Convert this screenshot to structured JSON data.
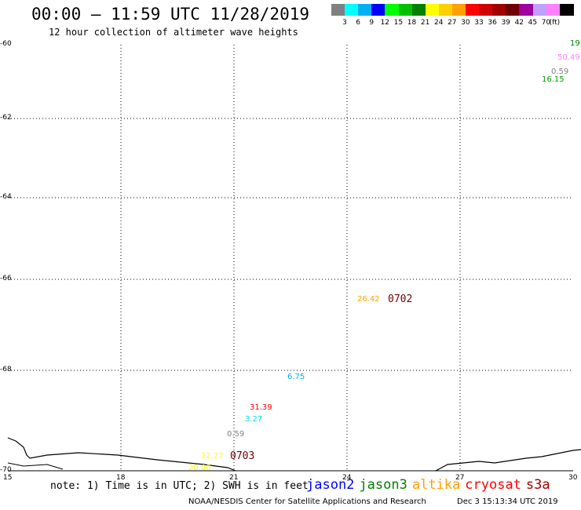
{
  "header": {
    "title": "00:00 – 11:59 UTC 11/28/2019",
    "subtitle": "12 hour collection of altimeter wave heights"
  },
  "colorbar": {
    "colors": [
      "#808080",
      "#00ffff",
      "#00b0f0",
      "#0000ff",
      "#00ff00",
      "#00c000",
      "#008000",
      "#ffff00",
      "#ffd000",
      "#ffa000",
      "#ff0000",
      "#d00000",
      "#a00000",
      "#700000",
      "#a000a0",
      "#c0a0ff",
      "#ff80ff",
      "#000000"
    ],
    "labels": [
      "3",
      "6",
      "9",
      "12",
      "15",
      "18",
      "21",
      "24",
      "27",
      "30",
      "33",
      "36",
      "39",
      "42",
      "45",
      "70"
    ],
    "unit": "(ft)"
  },
  "axes": {
    "lat_labels": [
      "-60",
      "-62",
      "-64",
      "-66",
      "-68",
      "-70"
    ],
    "lon_labels": [
      "15",
      "18",
      "21",
      "24",
      "27",
      "30"
    ]
  },
  "observations": [
    {
      "text": "19.",
      "color": "#008000"
    },
    {
      "text": "50.49",
      "color": "#ff80ff"
    },
    {
      "text": "0.59",
      "color": "#808080"
    },
    {
      "text": "16.15",
      "color": "#00a000"
    },
    {
      "text": "26.42",
      "color": "#ffa000"
    },
    {
      "text": "6.75",
      "color": "#00b0f0"
    },
    {
      "text": "31.39",
      "color": "#ff0000"
    },
    {
      "text": "3.27",
      "color": "#00e0e0"
    },
    {
      "text": "0.59",
      "color": "#808080"
    },
    {
      "text": "22.27",
      "color": "#ffff00"
    },
    {
      "text": "20.00",
      "color": "#ffff00"
    }
  ],
  "passes": [
    {
      "text": "0702",
      "color": "#700000"
    },
    {
      "text": "0703",
      "color": "#700000"
    }
  ],
  "footer": {
    "note": "note: 1) Time is in UTC; 2) SWH is in feet",
    "legend": [
      {
        "name": "jason2",
        "color": "#0000ff"
      },
      {
        "name": "jason3",
        "color": "#008000"
      },
      {
        "name": "altika",
        "color": "#ffa000"
      },
      {
        "name": "cryosat",
        "color": "#ff0000"
      },
      {
        "name": "s3a",
        "color": "#a00000"
      }
    ],
    "credit": "NOAA/NESDIS Center for Satellite Applications and Research",
    "timestamp": "Dec  3 15:13:34 UTC 2019"
  }
}
